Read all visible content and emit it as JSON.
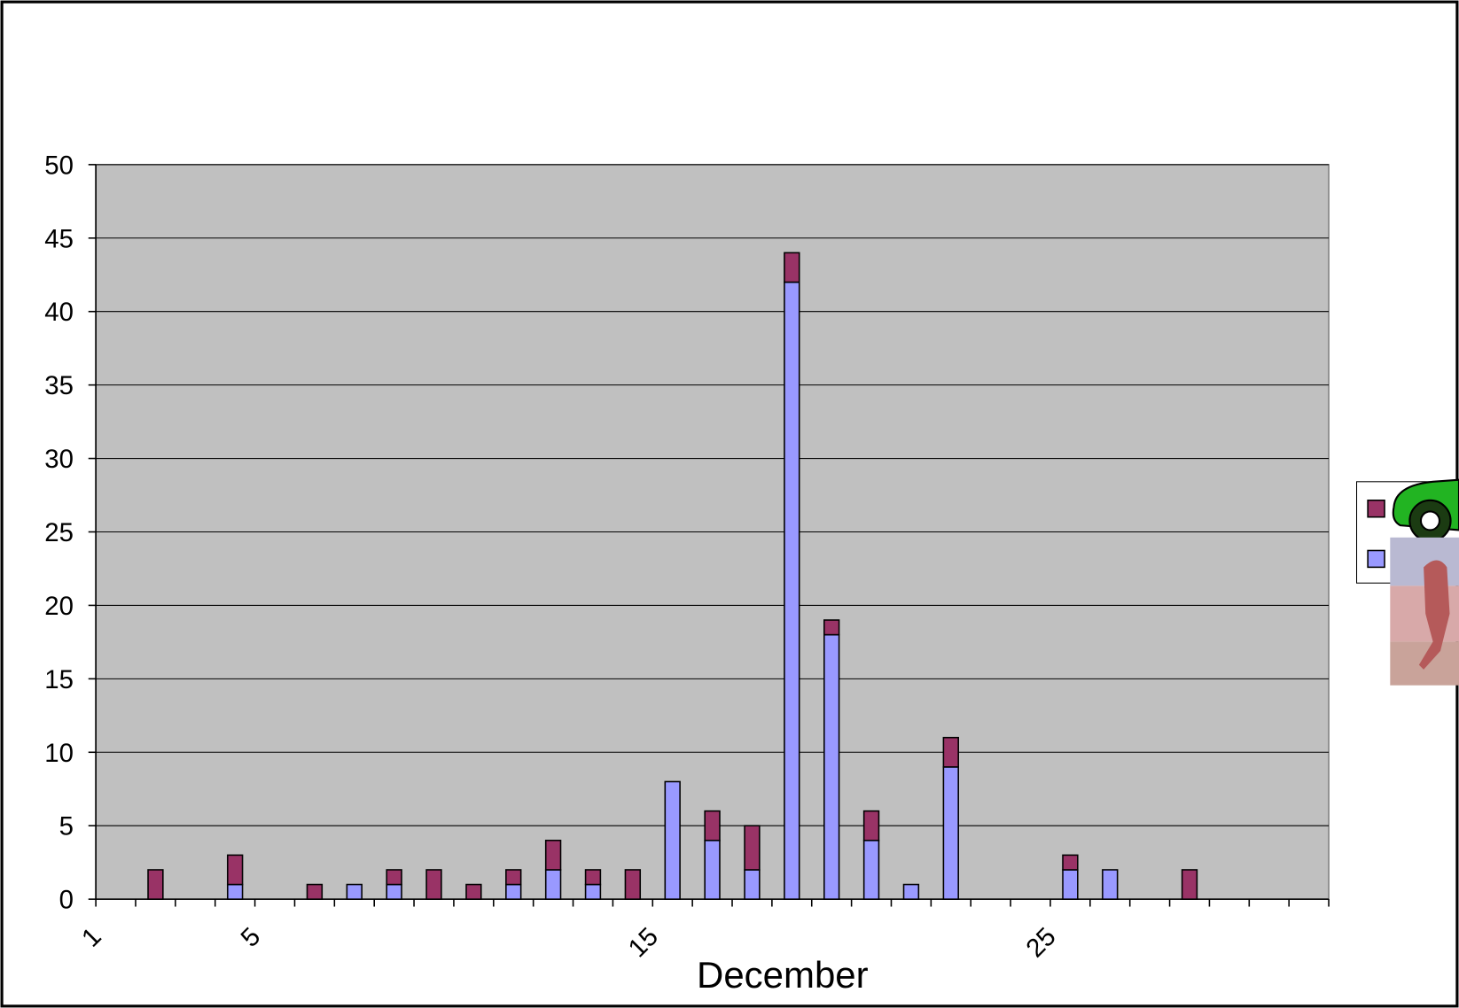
{
  "chart_data": {
    "type": "stacked-bar",
    "x_label": "December",
    "categories": [
      "1",
      null,
      null,
      null,
      "5",
      null,
      null,
      null,
      null,
      null,
      null,
      null,
      null,
      null,
      "15",
      null,
      null,
      null,
      null,
      null,
      null,
      null,
      null,
      null,
      "25",
      null,
      null,
      null,
      null,
      null,
      null
    ],
    "series": [
      {
        "color": "#9999ff",
        "values": [
          0,
          0,
          0,
          1,
          0,
          0,
          1,
          1,
          0,
          0,
          1,
          2,
          1,
          0,
          8,
          4,
          2,
          42,
          18,
          4,
          1,
          9,
          0,
          0,
          2,
          2,
          0,
          0,
          0,
          0,
          0
        ]
      },
      {
        "color": "#993366",
        "values": [
          0,
          2,
          0,
          2,
          0,
          1,
          0,
          1,
          2,
          1,
          1,
          2,
          1,
          2,
          0,
          2,
          3,
          2,
          1,
          2,
          0,
          2,
          0,
          0,
          1,
          0,
          0,
          2,
          0,
          0,
          0
        ]
      }
    ],
    "ylim": [
      0,
      50
    ],
    "yticks": [
      0,
      5,
      10,
      15,
      20,
      25,
      30,
      35,
      40,
      45,
      50
    ],
    "grid": true,
    "plot_background": "#c0c0c0",
    "legend": "right"
  }
}
